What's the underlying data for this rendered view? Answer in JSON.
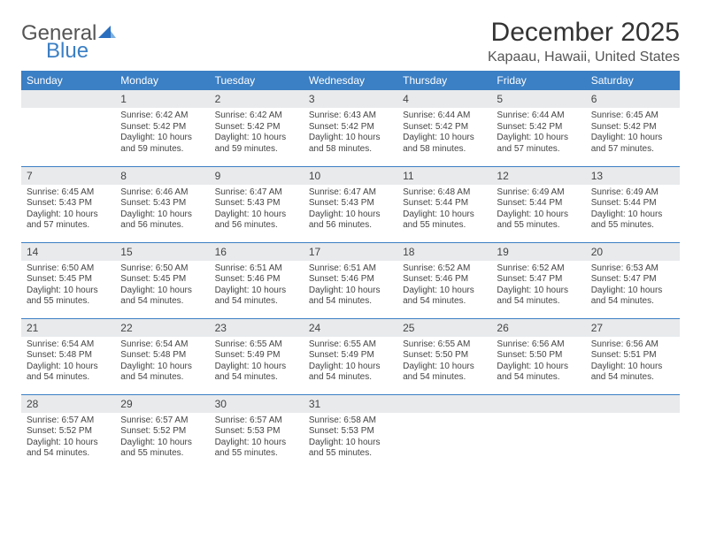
{
  "logo": {
    "word1": "General",
    "word2": "Blue",
    "icon_color": "#2a6fbf"
  },
  "title": "December 2025",
  "location": "Kapaau, Hawaii, United States",
  "header_bg": "#3b7fc4",
  "daynum_bg": "#e8eaec",
  "rule_color": "#3b7fc4",
  "dow": [
    "Sunday",
    "Monday",
    "Tuesday",
    "Wednesday",
    "Thursday",
    "Friday",
    "Saturday"
  ],
  "weeks": [
    [
      null,
      {
        "n": "1",
        "sr": "Sunrise: 6:42 AM",
        "ss": "Sunset: 5:42 PM",
        "dl": "Daylight: 10 hours and 59 minutes."
      },
      {
        "n": "2",
        "sr": "Sunrise: 6:42 AM",
        "ss": "Sunset: 5:42 PM",
        "dl": "Daylight: 10 hours and 59 minutes."
      },
      {
        "n": "3",
        "sr": "Sunrise: 6:43 AM",
        "ss": "Sunset: 5:42 PM",
        "dl": "Daylight: 10 hours and 58 minutes."
      },
      {
        "n": "4",
        "sr": "Sunrise: 6:44 AM",
        "ss": "Sunset: 5:42 PM",
        "dl": "Daylight: 10 hours and 58 minutes."
      },
      {
        "n": "5",
        "sr": "Sunrise: 6:44 AM",
        "ss": "Sunset: 5:42 PM",
        "dl": "Daylight: 10 hours and 57 minutes."
      },
      {
        "n": "6",
        "sr": "Sunrise: 6:45 AM",
        "ss": "Sunset: 5:42 PM",
        "dl": "Daylight: 10 hours and 57 minutes."
      }
    ],
    [
      {
        "n": "7",
        "sr": "Sunrise: 6:45 AM",
        "ss": "Sunset: 5:43 PM",
        "dl": "Daylight: 10 hours and 57 minutes."
      },
      {
        "n": "8",
        "sr": "Sunrise: 6:46 AM",
        "ss": "Sunset: 5:43 PM",
        "dl": "Daylight: 10 hours and 56 minutes."
      },
      {
        "n": "9",
        "sr": "Sunrise: 6:47 AM",
        "ss": "Sunset: 5:43 PM",
        "dl": "Daylight: 10 hours and 56 minutes."
      },
      {
        "n": "10",
        "sr": "Sunrise: 6:47 AM",
        "ss": "Sunset: 5:43 PM",
        "dl": "Daylight: 10 hours and 56 minutes."
      },
      {
        "n": "11",
        "sr": "Sunrise: 6:48 AM",
        "ss": "Sunset: 5:44 PM",
        "dl": "Daylight: 10 hours and 55 minutes."
      },
      {
        "n": "12",
        "sr": "Sunrise: 6:49 AM",
        "ss": "Sunset: 5:44 PM",
        "dl": "Daylight: 10 hours and 55 minutes."
      },
      {
        "n": "13",
        "sr": "Sunrise: 6:49 AM",
        "ss": "Sunset: 5:44 PM",
        "dl": "Daylight: 10 hours and 55 minutes."
      }
    ],
    [
      {
        "n": "14",
        "sr": "Sunrise: 6:50 AM",
        "ss": "Sunset: 5:45 PM",
        "dl": "Daylight: 10 hours and 55 minutes."
      },
      {
        "n": "15",
        "sr": "Sunrise: 6:50 AM",
        "ss": "Sunset: 5:45 PM",
        "dl": "Daylight: 10 hours and 54 minutes."
      },
      {
        "n": "16",
        "sr": "Sunrise: 6:51 AM",
        "ss": "Sunset: 5:46 PM",
        "dl": "Daylight: 10 hours and 54 minutes."
      },
      {
        "n": "17",
        "sr": "Sunrise: 6:51 AM",
        "ss": "Sunset: 5:46 PM",
        "dl": "Daylight: 10 hours and 54 minutes."
      },
      {
        "n": "18",
        "sr": "Sunrise: 6:52 AM",
        "ss": "Sunset: 5:46 PM",
        "dl": "Daylight: 10 hours and 54 minutes."
      },
      {
        "n": "19",
        "sr": "Sunrise: 6:52 AM",
        "ss": "Sunset: 5:47 PM",
        "dl": "Daylight: 10 hours and 54 minutes."
      },
      {
        "n": "20",
        "sr": "Sunrise: 6:53 AM",
        "ss": "Sunset: 5:47 PM",
        "dl": "Daylight: 10 hours and 54 minutes."
      }
    ],
    [
      {
        "n": "21",
        "sr": "Sunrise: 6:54 AM",
        "ss": "Sunset: 5:48 PM",
        "dl": "Daylight: 10 hours and 54 minutes."
      },
      {
        "n": "22",
        "sr": "Sunrise: 6:54 AM",
        "ss": "Sunset: 5:48 PM",
        "dl": "Daylight: 10 hours and 54 minutes."
      },
      {
        "n": "23",
        "sr": "Sunrise: 6:55 AM",
        "ss": "Sunset: 5:49 PM",
        "dl": "Daylight: 10 hours and 54 minutes."
      },
      {
        "n": "24",
        "sr": "Sunrise: 6:55 AM",
        "ss": "Sunset: 5:49 PM",
        "dl": "Daylight: 10 hours and 54 minutes."
      },
      {
        "n": "25",
        "sr": "Sunrise: 6:55 AM",
        "ss": "Sunset: 5:50 PM",
        "dl": "Daylight: 10 hours and 54 minutes."
      },
      {
        "n": "26",
        "sr": "Sunrise: 6:56 AM",
        "ss": "Sunset: 5:50 PM",
        "dl": "Daylight: 10 hours and 54 minutes."
      },
      {
        "n": "27",
        "sr": "Sunrise: 6:56 AM",
        "ss": "Sunset: 5:51 PM",
        "dl": "Daylight: 10 hours and 54 minutes."
      }
    ],
    [
      {
        "n": "28",
        "sr": "Sunrise: 6:57 AM",
        "ss": "Sunset: 5:52 PM",
        "dl": "Daylight: 10 hours and 54 minutes."
      },
      {
        "n": "29",
        "sr": "Sunrise: 6:57 AM",
        "ss": "Sunset: 5:52 PM",
        "dl": "Daylight: 10 hours and 55 minutes."
      },
      {
        "n": "30",
        "sr": "Sunrise: 6:57 AM",
        "ss": "Sunset: 5:53 PM",
        "dl": "Daylight: 10 hours and 55 minutes."
      },
      {
        "n": "31",
        "sr": "Sunrise: 6:58 AM",
        "ss": "Sunset: 5:53 PM",
        "dl": "Daylight: 10 hours and 55 minutes."
      },
      null,
      null,
      null
    ]
  ]
}
